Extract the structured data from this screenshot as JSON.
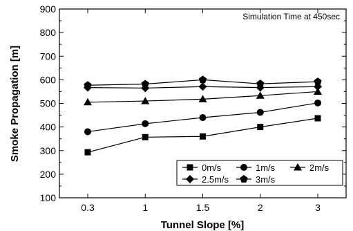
{
  "chart_data": {
    "type": "line",
    "annotation": "Simulation Time at 450sec",
    "xlabel": "Tunnel Slope [%]",
    "ylabel": "Smoke Propagation [m]",
    "categories": [
      "0.3",
      "1",
      "1.5",
      "2",
      "3"
    ],
    "ylim": [
      100,
      900
    ],
    "yticks": [
      100,
      200,
      300,
      400,
      500,
      600,
      700,
      800,
      900
    ],
    "grid": false,
    "legend_position": "bottom-right",
    "series": [
      {
        "name": "0m/s",
        "marker": "square",
        "values": [
          293,
          357,
          360,
          400,
          437
        ]
      },
      {
        "name": "1m/s",
        "marker": "circle",
        "values": [
          380,
          414,
          440,
          462,
          502
        ]
      },
      {
        "name": "2m/s",
        "marker": "triangle",
        "values": [
          505,
          510,
          518,
          533,
          550
        ]
      },
      {
        "name": "2.5m/s",
        "marker": "diamond",
        "values": [
          567,
          565,
          571,
          567,
          571
        ]
      },
      {
        "name": "3m/s",
        "marker": "pentagon",
        "values": [
          577,
          582,
          600,
          583,
          592
        ]
      }
    ]
  }
}
